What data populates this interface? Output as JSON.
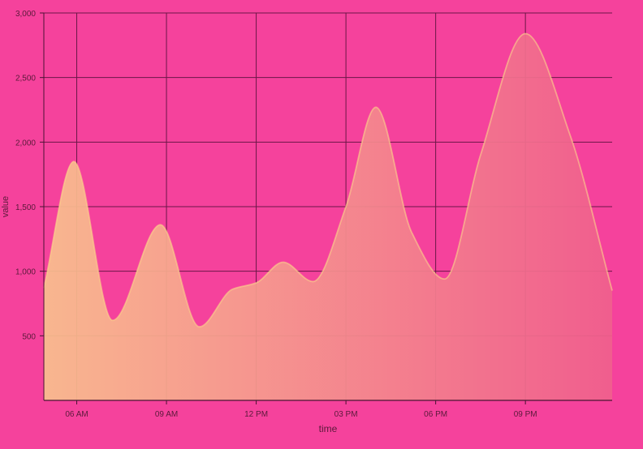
{
  "colors": {
    "background": "#f5429c",
    "grid": "#6b1747",
    "axis": "#4a1233",
    "text": "#5a1a3a",
    "gradient_start": "#f9c08e",
    "gradient_end": "#f0608d",
    "line": "#fbd68a"
  },
  "chart_data": {
    "type": "area",
    "xlabel": "time",
    "ylabel": "value",
    "ylim": [
      0,
      3000
    ],
    "yticks": [
      500,
      1000,
      1500,
      2000,
      2500,
      3000
    ],
    "ytick_labels": [
      "500",
      "1,000",
      "1,500",
      "2,000",
      "2,500",
      "3,000"
    ],
    "xlim_hours": [
      4.9,
      23.9
    ],
    "xtick_hours": [
      6,
      9,
      12,
      15,
      18,
      21
    ],
    "xtick_labels": [
      "06 AM",
      "09 AM",
      "12 PM",
      "03 PM",
      "06 PM",
      "09 PM"
    ],
    "grid": true,
    "x_hours": [
      4.9,
      5.9,
      7.2,
      8.8,
      10.1,
      11.2,
      12.0,
      12.9,
      13.9,
      15.0,
      16.0,
      17.2,
      18.3,
      19.5,
      21.0,
      22.5,
      23.9
    ],
    "values": [
      870,
      1850,
      620,
      1360,
      570,
      860,
      910,
      1070,
      920,
      1500,
      2270,
      1300,
      940,
      1900,
      2840,
      2050,
      850
    ]
  }
}
